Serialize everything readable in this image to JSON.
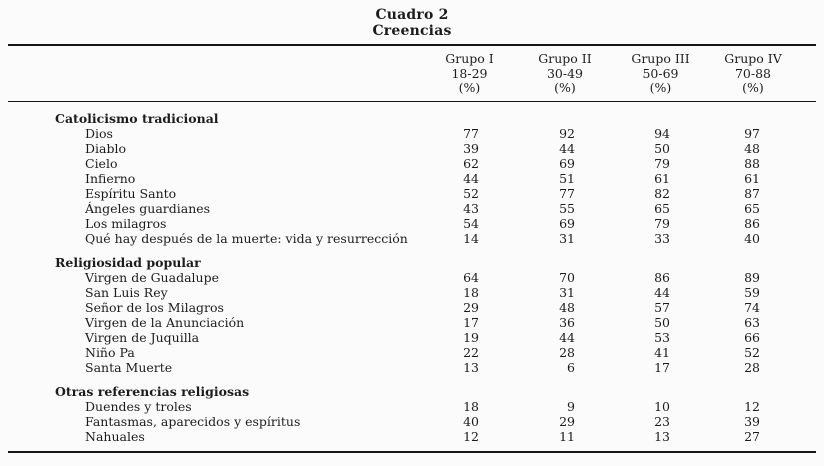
{
  "page": {
    "background": "#fbfbfb",
    "text_color": "#1c1c1c",
    "rule_color": "#161616"
  },
  "title": "Cuadro 2",
  "subtitle": "Creencias",
  "columns": [
    {
      "group": "Grupo I",
      "age_range": "18-29",
      "unit": "(%)"
    },
    {
      "group": "Grupo II",
      "age_range": "30-49",
      "unit": "(%)"
    },
    {
      "group": "Grupo III",
      "age_range": "50-69",
      "unit": "(%)"
    },
    {
      "group": "Grupo IV",
      "age_range": "70-88",
      "unit": "(%)"
    }
  ],
  "sections": [
    {
      "header": "Catolicismo tradicional",
      "rows": [
        {
          "label": "Dios",
          "values": [
            77,
            92,
            94,
            97
          ]
        },
        {
          "label": "Diablo",
          "values": [
            39,
            44,
            50,
            48
          ]
        },
        {
          "label": "Cielo",
          "values": [
            62,
            69,
            79,
            88
          ]
        },
        {
          "label": "Infierno",
          "values": [
            44,
            51,
            61,
            61
          ]
        },
        {
          "label": "Espíritu Santo",
          "values": [
            52,
            77,
            82,
            87
          ]
        },
        {
          "label": "Ángeles guardianes",
          "values": [
            43,
            55,
            65,
            65
          ]
        },
        {
          "label": "Los milagros",
          "values": [
            54,
            69,
            79,
            86
          ]
        },
        {
          "label": "Qué hay después de la muerte: vida y resurrección",
          "values": [
            14,
            31,
            33,
            40
          ]
        }
      ]
    },
    {
      "header": "Religiosidad popular",
      "rows": [
        {
          "label": "Virgen de Guadalupe",
          "values": [
            64,
            70,
            86,
            89
          ]
        },
        {
          "label": "San Luis Rey",
          "values": [
            18,
            31,
            44,
            59
          ]
        },
        {
          "label": "Señor de los Milagros",
          "values": [
            29,
            48,
            57,
            74
          ]
        },
        {
          "label": "Virgen de la Anunciación",
          "values": [
            17,
            36,
            50,
            63
          ]
        },
        {
          "label": "Virgen de Juquilla",
          "values": [
            19,
            44,
            53,
            66
          ]
        },
        {
          "label": "Niño Pa",
          "values": [
            22,
            28,
            41,
            52
          ]
        },
        {
          "label": "Santa Muerte",
          "values": [
            13,
            6,
            17,
            28
          ]
        }
      ]
    },
    {
      "header": "Otras referencias religiosas",
      "rows": [
        {
          "label": "Duendes y troles",
          "values": [
            18,
            9,
            10,
            12
          ]
        },
        {
          "label": "Fantasmas, aparecidos y espíritus",
          "values": [
            40,
            29,
            23,
            39
          ]
        },
        {
          "label": "Nahuales",
          "values": [
            12,
            11,
            13,
            27
          ]
        }
      ]
    }
  ],
  "chart_data": {
    "type": "table",
    "title": "Cuadro 2",
    "subtitle": "Creencias",
    "columns": [
      "Grupo I 18-29 (%)",
      "Grupo II 30-49 (%)",
      "Grupo III 50-69 (%)",
      "Grupo IV 70-88 (%)"
    ],
    "sections": [
      {
        "header": "Catolicismo tradicional",
        "rows": [
          [
            "Dios",
            77,
            92,
            94,
            97
          ],
          [
            "Diablo",
            39,
            44,
            50,
            48
          ],
          [
            "Cielo",
            62,
            69,
            79,
            88
          ],
          [
            "Infierno",
            44,
            51,
            61,
            61
          ],
          [
            "Espíritu Santo",
            52,
            77,
            82,
            87
          ],
          [
            "Ángeles guardianes",
            43,
            55,
            65,
            65
          ],
          [
            "Los milagros",
            54,
            69,
            79,
            86
          ],
          [
            "Qué hay después de la muerte: vida y resurrección",
            14,
            31,
            33,
            40
          ]
        ]
      },
      {
        "header": "Religiosidad popular",
        "rows": [
          [
            "Virgen de Guadalupe",
            64,
            70,
            86,
            89
          ],
          [
            "San Luis Rey",
            18,
            31,
            44,
            59
          ],
          [
            "Señor de los Milagros",
            29,
            48,
            57,
            74
          ],
          [
            "Virgen de la Anunciación",
            17,
            36,
            50,
            63
          ],
          [
            "Virgen de Juquilla",
            19,
            44,
            53,
            66
          ],
          [
            "Niño Pa",
            22,
            28,
            41,
            52
          ],
          [
            "Santa Muerte",
            13,
            6,
            17,
            28
          ]
        ]
      },
      {
        "header": "Otras referencias religiosas",
        "rows": [
          [
            "Duendes y troles",
            18,
            9,
            10,
            12
          ],
          [
            "Fantasmas, aparecidos y espíritus",
            40,
            29,
            23,
            39
          ],
          [
            "Nahuales",
            12,
            11,
            13,
            27
          ]
        ]
      }
    ]
  }
}
